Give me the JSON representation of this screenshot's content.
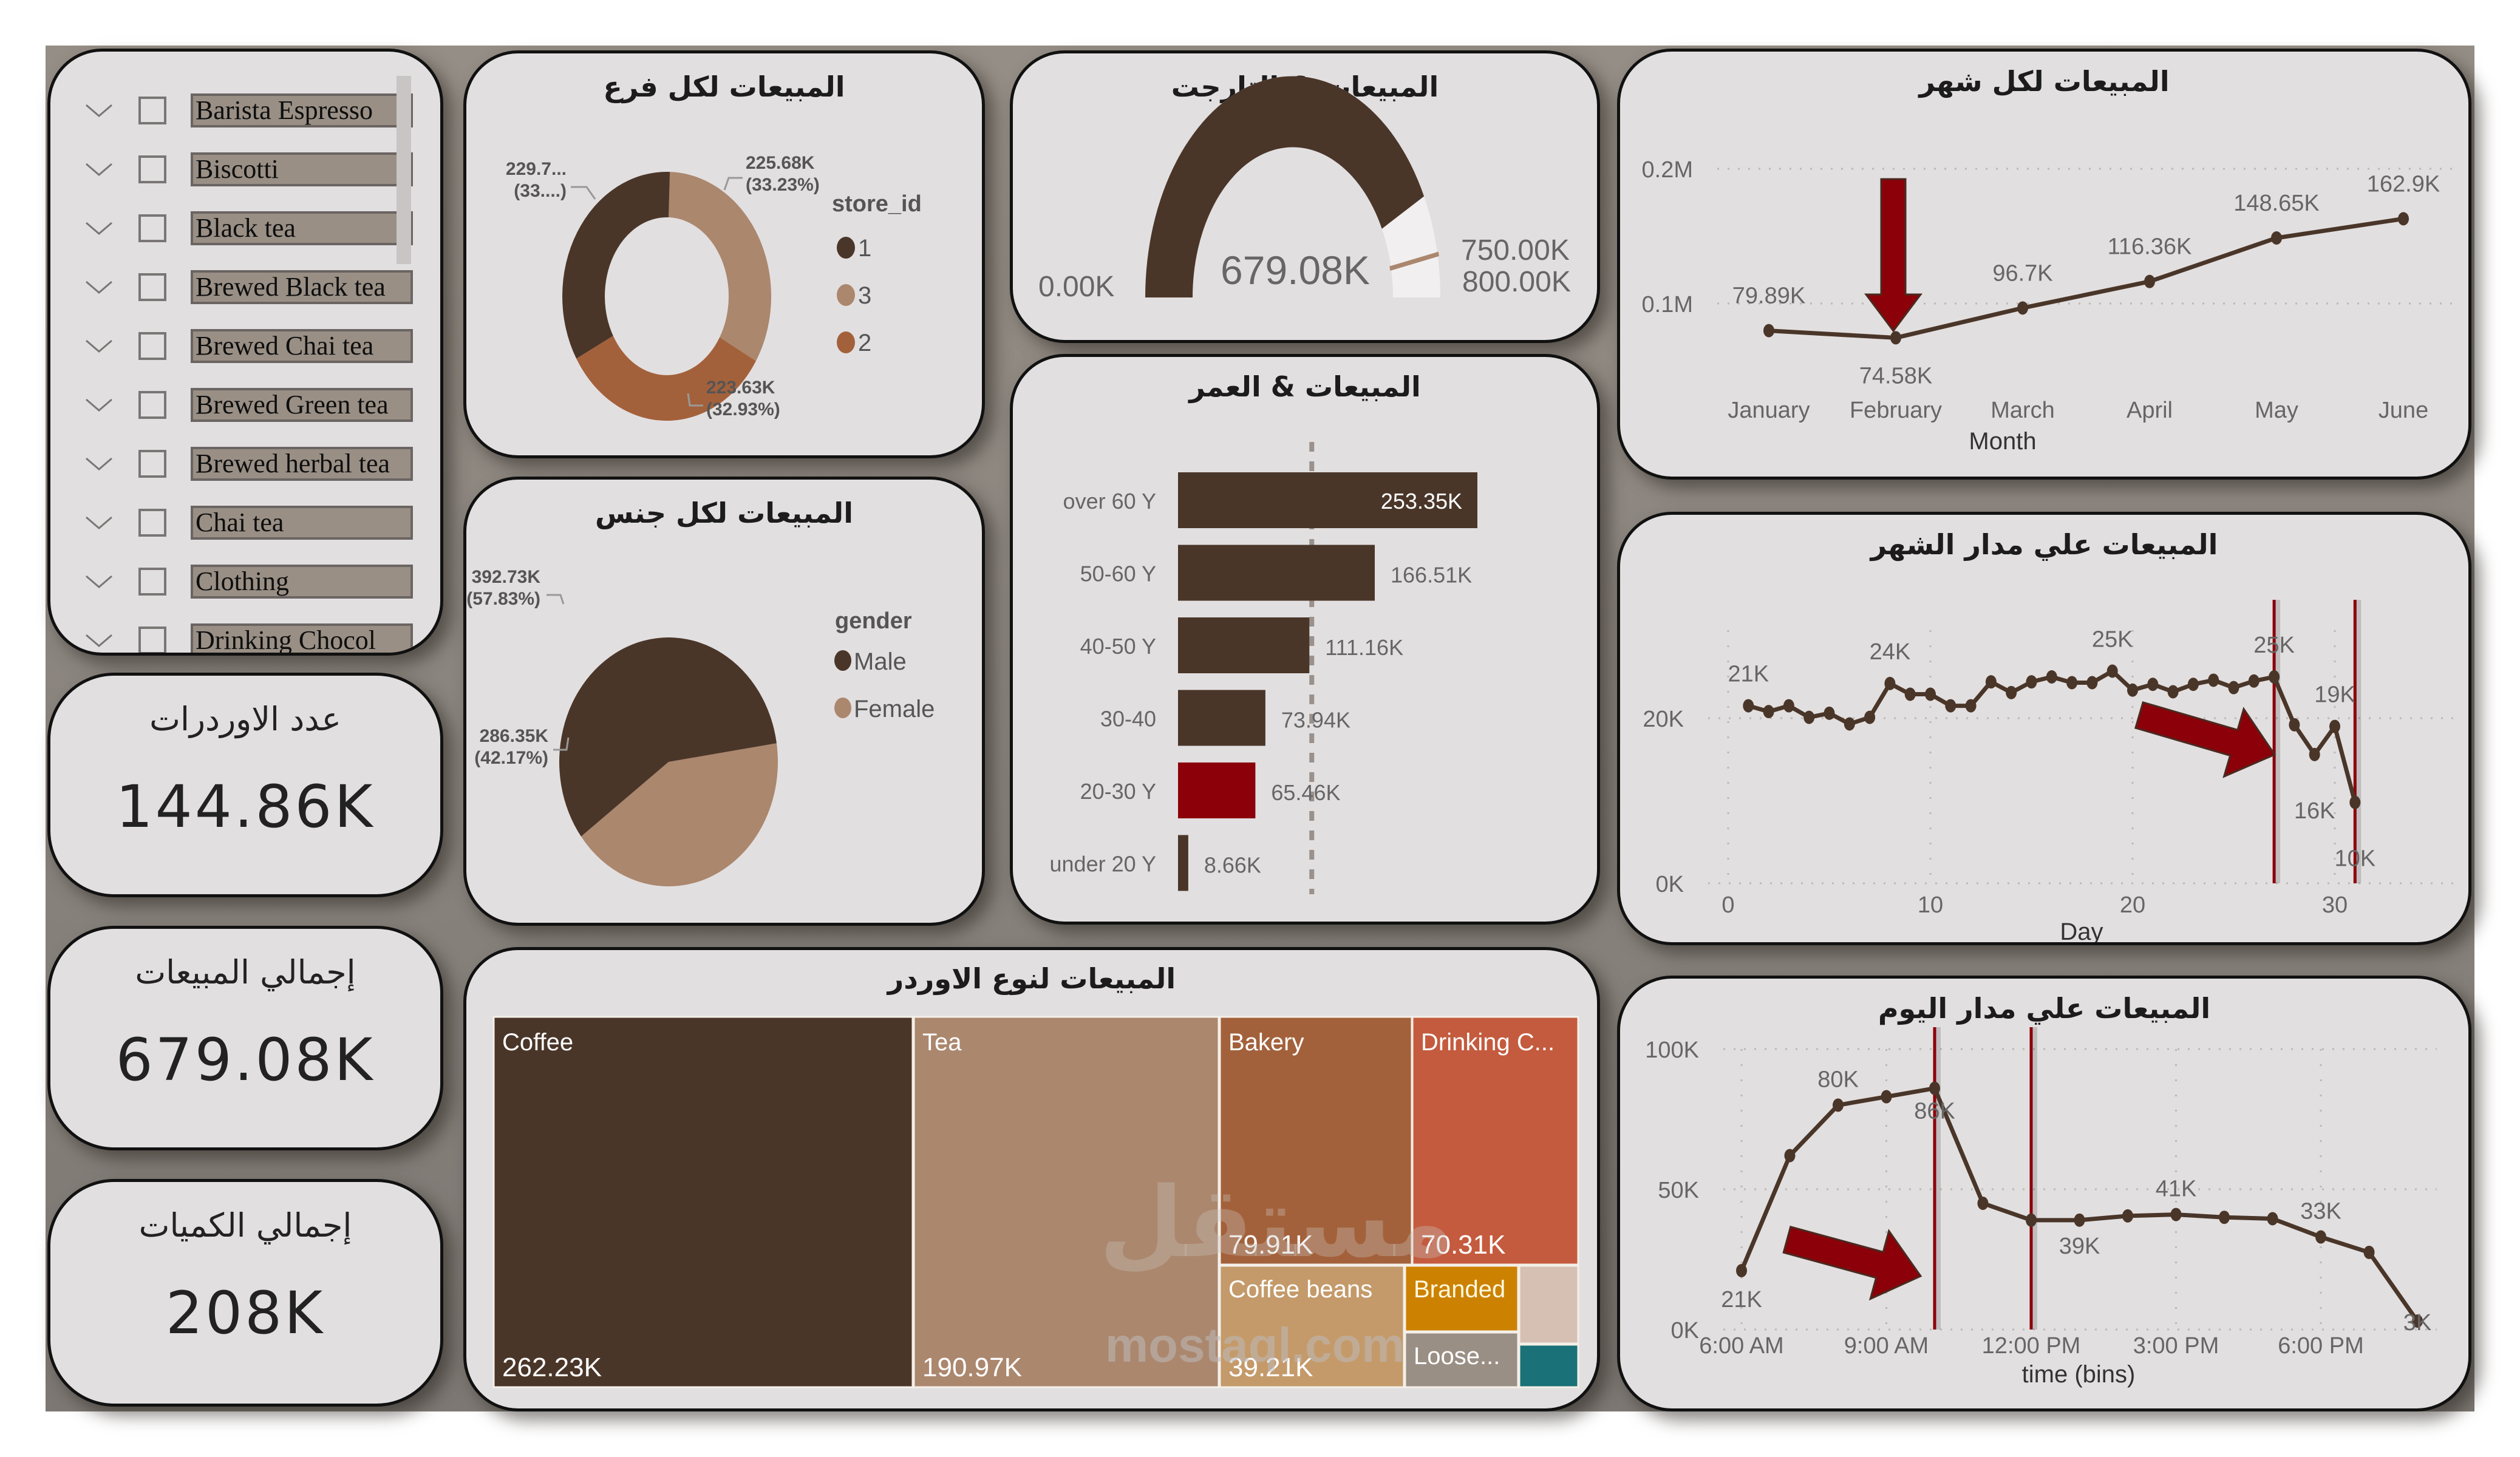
{
  "colors": {
    "dark_brown": "#4a3629",
    "tan": "#ab876e",
    "rust": "#a3613b",
    "orange_red": "#c45b3e",
    "light_tan": "#c49a6a",
    "amber": "#cc8200",
    "gray_taupe": "#9a8f85",
    "pale_pink": "#d6c0b4",
    "teal": "#1b7178",
    "highlight_red": "#8b0009",
    "panel_bg": "#e2dfe0",
    "frame_bg": "#8a847e"
  },
  "slicer": {
    "items": [
      {
        "label": "Barista Espresso",
        "checked": false
      },
      {
        "label": "Biscotti",
        "checked": false
      },
      {
        "label": "Black tea",
        "checked": false
      },
      {
        "label": "Brewed Black tea",
        "checked": false
      },
      {
        "label": "Brewed Chai tea",
        "checked": false
      },
      {
        "label": "Brewed Green tea",
        "checked": false
      },
      {
        "label": "Brewed herbal tea",
        "checked": false
      },
      {
        "label": "Chai tea",
        "checked": false
      },
      {
        "label": "Clothing",
        "checked": false
      },
      {
        "label": "Drinking Chocol",
        "checked": false
      }
    ]
  },
  "kpis": [
    {
      "label": "عدد الاوردرات",
      "value": "144.86K"
    },
    {
      "label": "إجمالي المبيعات",
      "value": "679.08K"
    },
    {
      "label": "إجمالي الكميات",
      "value": "208K"
    }
  ],
  "watermark": {
    "ar": "مستقل",
    "en": "mostaql.com"
  },
  "chart_data": [
    {
      "id": "sales_by_store",
      "type": "pie",
      "donut": true,
      "title": "المبيعات لكل فرع",
      "legend_title": "store_id",
      "legend_position": "right",
      "categories": [
        "1",
        "3",
        "2"
      ],
      "values": [
        229.77,
        225.68,
        223.63
      ],
      "labels": [
        "229.7...\n(33....)",
        "225.68K\n(33.23%)",
        "223.63K\n(32.93%)"
      ],
      "label_lines": [
        [
          "229.7...",
          "(33....)"
        ],
        [
          "225.68K",
          "(33.23%)"
        ],
        [
          "223.63K",
          "(32.93%)"
        ]
      ],
      "percentages": [
        33.84,
        33.23,
        32.93
      ],
      "colors": [
        "#4a3629",
        "#ab876e",
        "#a3613b"
      ]
    },
    {
      "id": "sales_by_gender",
      "type": "pie",
      "title": "المبيعات لكل جنس",
      "legend_title": "gender",
      "legend_position": "right",
      "categories": [
        "Male",
        "Female"
      ],
      "values": [
        392.73,
        286.35
      ],
      "percentages": [
        57.83,
        42.17
      ],
      "label_lines": [
        [
          "392.73K",
          "(57.83%)"
        ],
        [
          "286.35K",
          "(42.17%)"
        ]
      ],
      "colors": [
        "#4a3629",
        "#ab876e"
      ]
    },
    {
      "id": "sales_vs_target",
      "type": "gauge",
      "title": "المبيعات & التارجت",
      "value": 679.08,
      "value_label": "679.08K",
      "min": 0,
      "min_label": "0.00K",
      "target": 750,
      "target_label": "750.00K",
      "max": 800,
      "max_label": "800.00K"
    },
    {
      "id": "sales_by_age",
      "type": "bar",
      "orientation": "horizontal",
      "title": "المبيعات & العمر",
      "categories": [
        "over 60 Y",
        "50-60 Y",
        "40-50 Y",
        "30-40",
        "20-30 Y",
        "under 20 Y"
      ],
      "values": [
        253.35,
        166.51,
        111.16,
        73.94,
        65.46,
        8.66
      ],
      "value_labels": [
        "253.35K",
        "166.51K",
        "111.16K",
        "73.94K",
        "65.46K",
        "8.66K"
      ],
      "highlight": "20-30 Y",
      "average_line": 113.18
    },
    {
      "id": "sales_by_month",
      "type": "line",
      "title": "المبيعات لكل شهر",
      "xlabel": "Month",
      "ylabel": "",
      "categories": [
        "January",
        "February",
        "March",
        "April",
        "May",
        "June"
      ],
      "values": [
        79.89,
        74.58,
        96.7,
        116.36,
        148.65,
        162.9
      ],
      "value_labels": [
        "79.89K",
        "74.58K",
        "96.7K",
        "116.36K",
        "148.65K",
        "162.9K"
      ],
      "yticks": [
        "0.1M",
        "0.2M"
      ],
      "ylim": [
        0,
        200
      ],
      "annotation": "down arrow at February"
    },
    {
      "id": "sales_by_day",
      "type": "line",
      "title": "المبيعات علي مدار الشهر",
      "xlabel": "Day",
      "x": [
        1,
        2,
        3,
        4,
        5,
        6,
        7,
        8,
        9,
        10,
        11,
        12,
        13,
        14,
        15,
        16,
        17,
        18,
        19,
        20,
        21,
        22,
        23,
        24,
        25,
        26,
        27,
        28,
        29,
        30,
        31
      ],
      "values": [
        21.5,
        20.8,
        21.5,
        20.1,
        20.6,
        19.3,
        20.1,
        24.2,
        22.9,
        22.9,
        21.5,
        21.5,
        24.4,
        23.1,
        24.4,
        25.0,
        24.3,
        24.3,
        25.7,
        23.4,
        24.1,
        23.2,
        24.1,
        24.6,
        23.7,
        24.5,
        25.0,
        19.2,
        15.6,
        19.0,
        9.8
      ],
      "data_labels": [
        {
          "x": 1,
          "label": "21K"
        },
        {
          "x": 8,
          "label": "24K"
        },
        {
          "x": 19,
          "label": "25K"
        },
        {
          "x": 27,
          "label": "25K"
        },
        {
          "x": 29,
          "label": "16K"
        },
        {
          "x": 30,
          "label": "19K"
        },
        {
          "x": 31,
          "label": "10K"
        }
      ],
      "xticks": [
        "0",
        "10",
        "20",
        "30"
      ],
      "yticks": [
        "0K",
        "20K"
      ],
      "ylim": [
        0,
        30
      ],
      "reference_lines_x": [
        27,
        31
      ],
      "annotation": "arrow pointing at drop after day 27"
    },
    {
      "id": "sales_by_hour",
      "type": "line",
      "title": "المبيعات علي مدار اليوم",
      "xlabel": "time (bins)",
      "x": [
        "6:00 AM",
        "7:00 AM",
        "8:00 AM",
        "9:00 AM",
        "10:00 AM",
        "11:00 AM",
        "12:00 PM",
        "1:00 PM",
        "2:00 PM",
        "3:00 PM",
        "4:00 PM",
        "5:00 PM",
        "6:00 PM",
        "7:00 PM",
        "8:00 PM"
      ],
      "values": [
        21,
        62,
        80,
        83,
        86,
        45,
        39,
        39,
        40.5,
        41,
        40,
        39.5,
        33,
        27.5,
        3
      ],
      "data_labels": [
        {
          "x": "6:00 AM",
          "label": "21K"
        },
        {
          "x": "8:00 AM",
          "label": "80K"
        },
        {
          "x": "10:00 AM",
          "label": "86K"
        },
        {
          "x": "1:00 PM",
          "label": "39K"
        },
        {
          "x": "3:00 PM",
          "label": "41K"
        },
        {
          "x": "6:00 PM",
          "label": "33K"
        },
        {
          "x": "8:00 PM",
          "label": "3K"
        }
      ],
      "xticks": [
        "6:00 AM",
        "9:00 AM",
        "12:00 PM",
        "3:00 PM",
        "6:00 PM"
      ],
      "yticks": [
        "0K",
        "50K",
        "100K"
      ],
      "ylim": [
        0,
        100
      ],
      "reference_lines_x": [
        "10:00 AM",
        "12:00 PM"
      ],
      "annotation": "arrow pointing at drop after 10 AM"
    },
    {
      "id": "sales_by_product_category",
      "type": "treemap",
      "title": "المبيعات لنوع الاوردر",
      "categories": [
        "Coffee",
        "Tea",
        "Bakery",
        "Drinking C...",
        "Coffee beans",
        "Branded",
        "Loose...",
        "",
        ""
      ],
      "values": [
        262.23,
        190.97,
        79.91,
        70.31,
        39.21,
        13.6,
        11.2,
        6.5,
        5.4
      ],
      "value_labels": [
        "262.23K",
        "190.97K",
        "79.91K",
        "70.31K",
        "39.21K",
        "",
        "",
        "",
        ""
      ],
      "colors": [
        "#4a3629",
        "#ab876e",
        "#a3613b",
        "#c45b3e",
        "#c49a6a",
        "#cc8200",
        "#9a8f85",
        "#d6c0b4",
        "#1b7178"
      ]
    }
  ]
}
